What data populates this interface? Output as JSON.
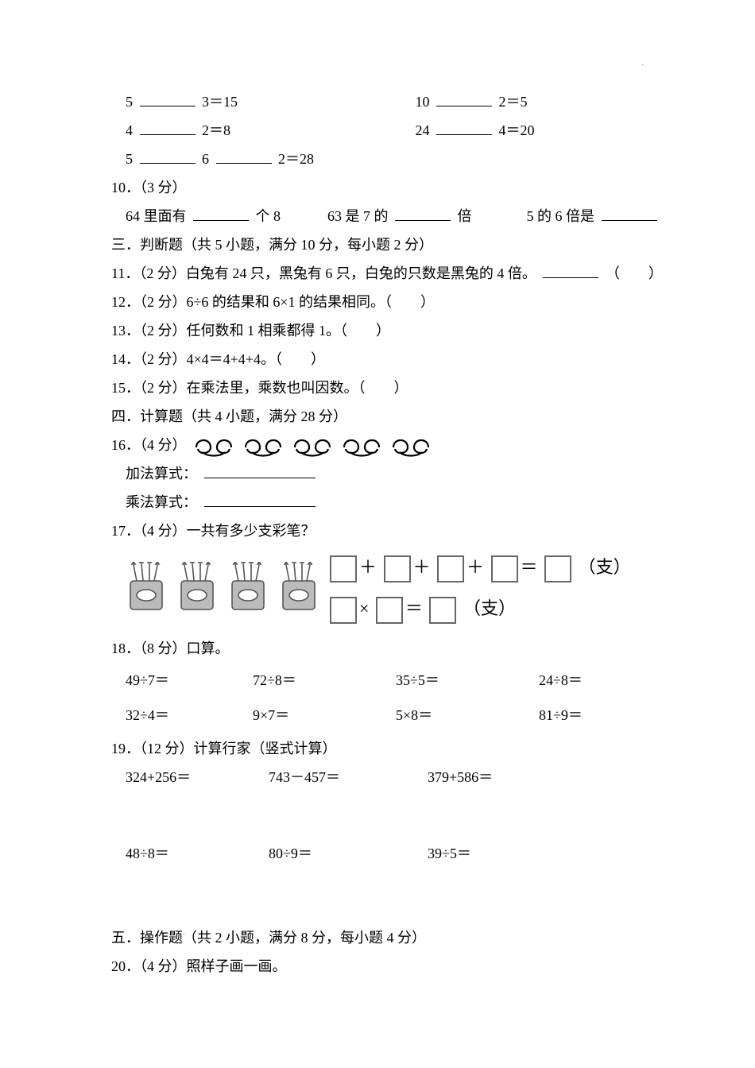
{
  "fill_equations": {
    "line1_left": {
      "a": "5",
      "b": "3＝15"
    },
    "line1_right": {
      "a": "10",
      "b": "2＝5"
    },
    "line2_left": {
      "a": "4",
      "b": "2＝8"
    },
    "line2_right": {
      "a": "24",
      "b": "4＝20"
    },
    "line3": {
      "a": "5",
      "mid": "6",
      "b": "2＝28"
    }
  },
  "q10": {
    "label": "10．（3 分）",
    "part1_pre": "64 里面有",
    "part1_post": "个 8",
    "part2_pre": "63 是 7 的",
    "part2_post": "倍",
    "part3_pre": "5 的 6 倍是"
  },
  "section3": "三．判断题（共 5 小题，满分 10 分，每小题 2 分）",
  "q11": {
    "label": "11．（2 分）白兔有 24 只，黑兔有 6 只，白兔的只数是黑兔的 4 倍。",
    "tail": "（　　）"
  },
  "q12": {
    "label": "12．（2 分）6÷6 的结果和 6×1 的结果相同。（　　）"
  },
  "q13": {
    "label": "13．（2 分）任何数和 1 相乘都得 1。（　　）"
  },
  "q14": {
    "label": "14．（2 分）4×4＝4+4+4。（　　）"
  },
  "q15": {
    "label": "15．（2 分）在乘法里，乘数也叫因数。（　　）"
  },
  "section4": "四．计算题（共 4 小题，满分 28 分）",
  "q16": {
    "label": "16．（4 分）",
    "add": "加法算式：",
    "mul": "乘法算式："
  },
  "q17": {
    "label": "17．（4 分）一共有多少支彩笔？",
    "unit": "（支）"
  },
  "q18": {
    "label": "18．（8 分）口算。",
    "cells": [
      "49÷7＝",
      "72÷8＝",
      "35÷5＝",
      "24÷8＝",
      "32÷4＝",
      "9×7＝",
      "5×8＝",
      "81÷9＝"
    ]
  },
  "q19": {
    "label": "19．（12 分）计算行家（竖式计算）",
    "row1": [
      "324+256＝",
      "743－457＝",
      "379+586＝"
    ],
    "row2": [
      "48÷8＝",
      "80÷9＝",
      "39÷5＝"
    ]
  },
  "section5": "五．操作题（共 2 小题，满分 8 分，每小题 4 分）",
  "q20": "20．（4 分）照样子画一画。",
  "pretzel": {
    "count": 5,
    "stroke": "#000000",
    "fill": "none"
  },
  "cups": {
    "count": 4,
    "stroke": "#555555",
    "fill": "#bbbbbb"
  }
}
